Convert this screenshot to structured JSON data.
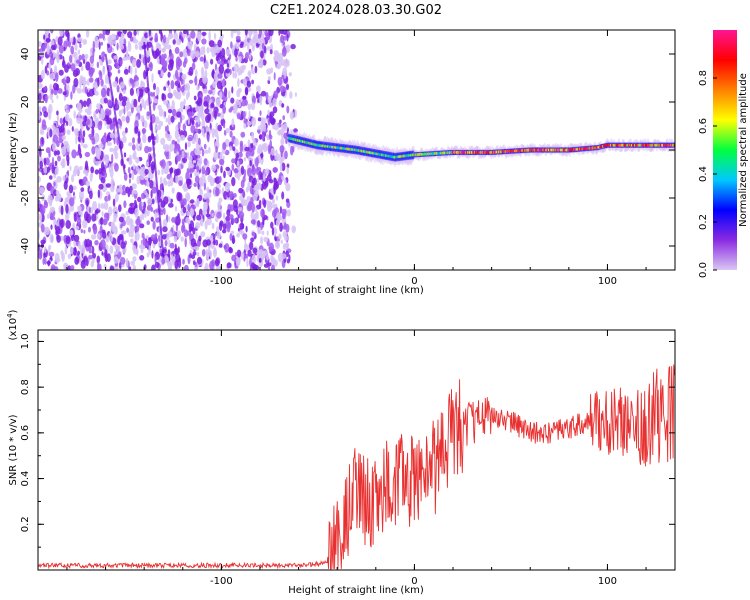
{
  "title": "C2E1.2024.028.03.30.G02",
  "chart_data": [
    {
      "type": "heatmap",
      "xlabel": "Height of straight line (km)",
      "ylabel": "Frequency (Hz)",
      "xlim": [
        -195,
        135
      ],
      "ylim": [
        -50,
        50
      ],
      "x_ticks": [
        -100,
        0,
        100
      ],
      "y_ticks": [
        -40,
        -20,
        0,
        20,
        40
      ],
      "colorbar": {
        "label": "Normalized spectral amplitude",
        "range": [
          0,
          1
        ],
        "ticks": [
          "0.0",
          "0.2",
          "0.4",
          "0.6",
          "0.8"
        ],
        "colors": [
          "#d9c7f2",
          "#8a2be2",
          "#0000ff",
          "#00c8ff",
          "#00ff40",
          "#ffff00",
          "#ff8000",
          "#ff0000",
          "#ff1493"
        ]
      },
      "noise_region_x": [
        -195,
        -65
      ],
      "trace": {
        "x": [
          -65,
          -50,
          -30,
          -10,
          0,
          20,
          40,
          60,
          80,
          95,
          100,
          120,
          135
        ],
        "y": [
          5,
          2,
          0,
          -3,
          -2,
          -1,
          -1,
          0,
          0,
          1,
          2,
          2,
          2
        ]
      }
    },
    {
      "type": "line",
      "xlabel": "Height of straight line (km)",
      "ylabel": "SNR (10 * v/v)",
      "ylabel_multiplier": "(x10",
      "ylabel_multiplier_exp": "4",
      "ylabel_multiplier_close": ")",
      "xlim": [
        -195,
        135
      ],
      "ylim": [
        0,
        1.05
      ],
      "x_ticks": [
        -100,
        0,
        100
      ],
      "y_ticks": [
        "0.2",
        "0.4",
        "0.6",
        "0.8",
        "1.0"
      ],
      "line_color": "#e83030",
      "series": [
        {
          "x": [
            -195,
            -150,
            -100,
            -60,
            -45,
            -40,
            -35,
            -30,
            -25,
            -20,
            -15,
            -10,
            -5,
            0,
            5,
            10,
            15,
            20,
            30,
            40,
            50,
            60,
            70,
            80,
            90,
            100,
            110,
            120,
            130,
            135
          ],
          "y": [
            0.02,
            0.02,
            0.02,
            0.02,
            0.03,
            0.08,
            0.25,
            0.35,
            0.3,
            0.3,
            0.35,
            0.4,
            0.38,
            0.4,
            0.42,
            0.45,
            0.5,
            0.6,
            0.65,
            0.68,
            0.65,
            0.6,
            0.6,
            0.62,
            0.65,
            0.65,
            0.65,
            0.65,
            0.7,
            0.7
          ]
        }
      ]
    }
  ]
}
